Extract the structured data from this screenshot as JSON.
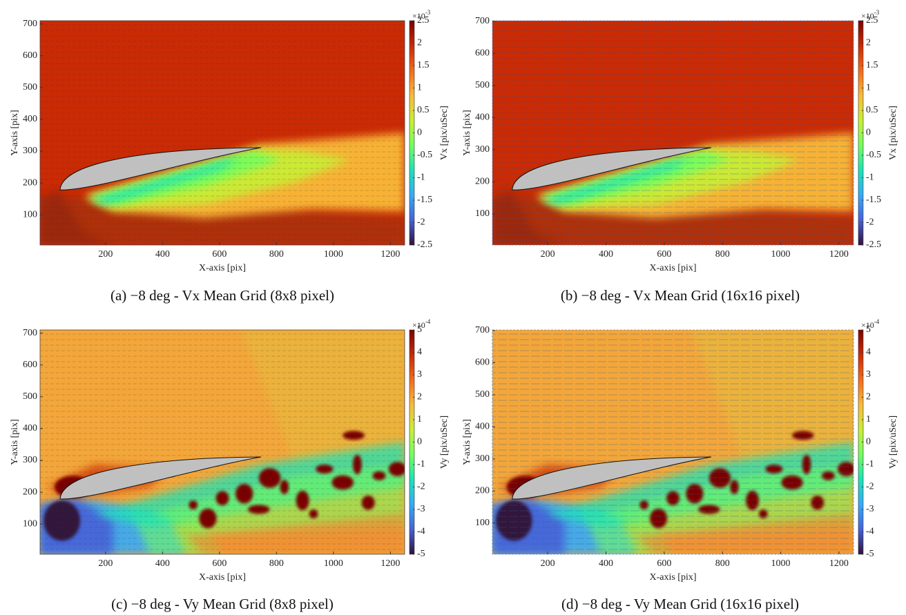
{
  "chart_data": [
    {
      "type": "heatmap",
      "caption": "(a) −8 deg - Vx Mean Grid (8x8 pixel)",
      "xlabel": "X-axis [pix]",
      "ylabel": "Y-axis [pix]",
      "colorbar_label": "Vx [pix/uSec]",
      "colorbar_multiplier": "×10",
      "colorbar_exponent": "-3",
      "xlim": [
        -30,
        1250
      ],
      "ylim": [
        5,
        710
      ],
      "xticks": [
        200,
        400,
        600,
        800,
        1000,
        1200
      ],
      "yticks": [
        100,
        200,
        300,
        400,
        500,
        600,
        700
      ],
      "clim": [
        -2.5,
        2.5
      ],
      "cticks": [
        -2.5,
        -2,
        -1.5,
        -1,
        -0.5,
        0,
        0.5,
        1,
        1.5,
        2,
        2.5
      ],
      "colormap": [
        "#30123b",
        "#4662d7",
        "#36aaf9",
        "#1ae4b6",
        "#72fe5e",
        "#c8ef34",
        "#faba39",
        "#f66b19",
        "#ca2a04",
        "#7a0403"
      ]
    },
    {
      "type": "heatmap",
      "caption": "(b) −8 deg - Vx Mean Grid (16x16 pixel)",
      "xlabel": "X-axis [pix]",
      "ylabel": "Y-axis [pix]",
      "colorbar_label": "Vx [pix/uSec]",
      "colorbar_multiplier": "×10",
      "colorbar_exponent": "-3",
      "xlim": [
        10,
        1250
      ],
      "ylim": [
        3,
        702
      ],
      "xticks": [
        200,
        400,
        600,
        800,
        1000,
        1200
      ],
      "yticks": [
        100,
        200,
        300,
        400,
        500,
        600,
        700
      ],
      "clim": [
        -2.5,
        2.5
      ],
      "cticks": [
        -2.5,
        -2,
        -1.5,
        -1,
        -0.5,
        0,
        0.5,
        1,
        1.5,
        2,
        2.5
      ],
      "colormap": [
        "#30123b",
        "#4662d7",
        "#36aaf9",
        "#1ae4b6",
        "#72fe5e",
        "#c8ef34",
        "#faba39",
        "#f66b19",
        "#ca2a04",
        "#7a0403"
      ]
    },
    {
      "type": "heatmap",
      "caption": "(c) −8 deg - Vy Mean Grid (8x8 pixel)",
      "xlabel": "X-axis [pix]",
      "ylabel": "Y-axis [pix]",
      "colorbar_label": "Vy [pix/uSec]",
      "colorbar_multiplier": "×10",
      "colorbar_exponent": "-4",
      "xlim": [
        -30,
        1250
      ],
      "ylim": [
        5,
        710
      ],
      "xticks": [
        200,
        400,
        600,
        800,
        1000,
        1200
      ],
      "yticks": [
        100,
        200,
        300,
        400,
        500,
        600,
        700
      ],
      "clim": [
        -5,
        5
      ],
      "cticks": [
        -5,
        -4,
        -3,
        -2,
        -1,
        0,
        1,
        2,
        3,
        4,
        5
      ],
      "colormap": [
        "#30123b",
        "#4662d7",
        "#36aaf9",
        "#1ae4b6",
        "#72fe5e",
        "#c8ef34",
        "#faba39",
        "#f66b19",
        "#ca2a04",
        "#7a0403"
      ]
    },
    {
      "type": "heatmap",
      "caption": "(d) −8 deg - Vy Mean Grid (16x16 pixel)",
      "xlabel": "X-axis [pix]",
      "ylabel": "Y-axis [pix]",
      "colorbar_label": "Vy [pix/uSec]",
      "colorbar_multiplier": "×10",
      "colorbar_exponent": "-4",
      "xlim": [
        10,
        1250
      ],
      "ylim": [
        3,
        702
      ],
      "xticks": [
        200,
        400,
        600,
        800,
        1000,
        1200
      ],
      "yticks": [
        100,
        200,
        300,
        400,
        500,
        600,
        700
      ],
      "clim": [
        -5,
        5
      ],
      "cticks": [
        -5,
        -4,
        -3,
        -2,
        -1,
        0,
        1,
        2,
        3,
        4,
        5
      ],
      "colormap": [
        "#30123b",
        "#4662d7",
        "#36aaf9",
        "#1ae4b6",
        "#72fe5e",
        "#c8ef34",
        "#faba39",
        "#f66b19",
        "#ca2a04",
        "#7a0403"
      ]
    }
  ]
}
